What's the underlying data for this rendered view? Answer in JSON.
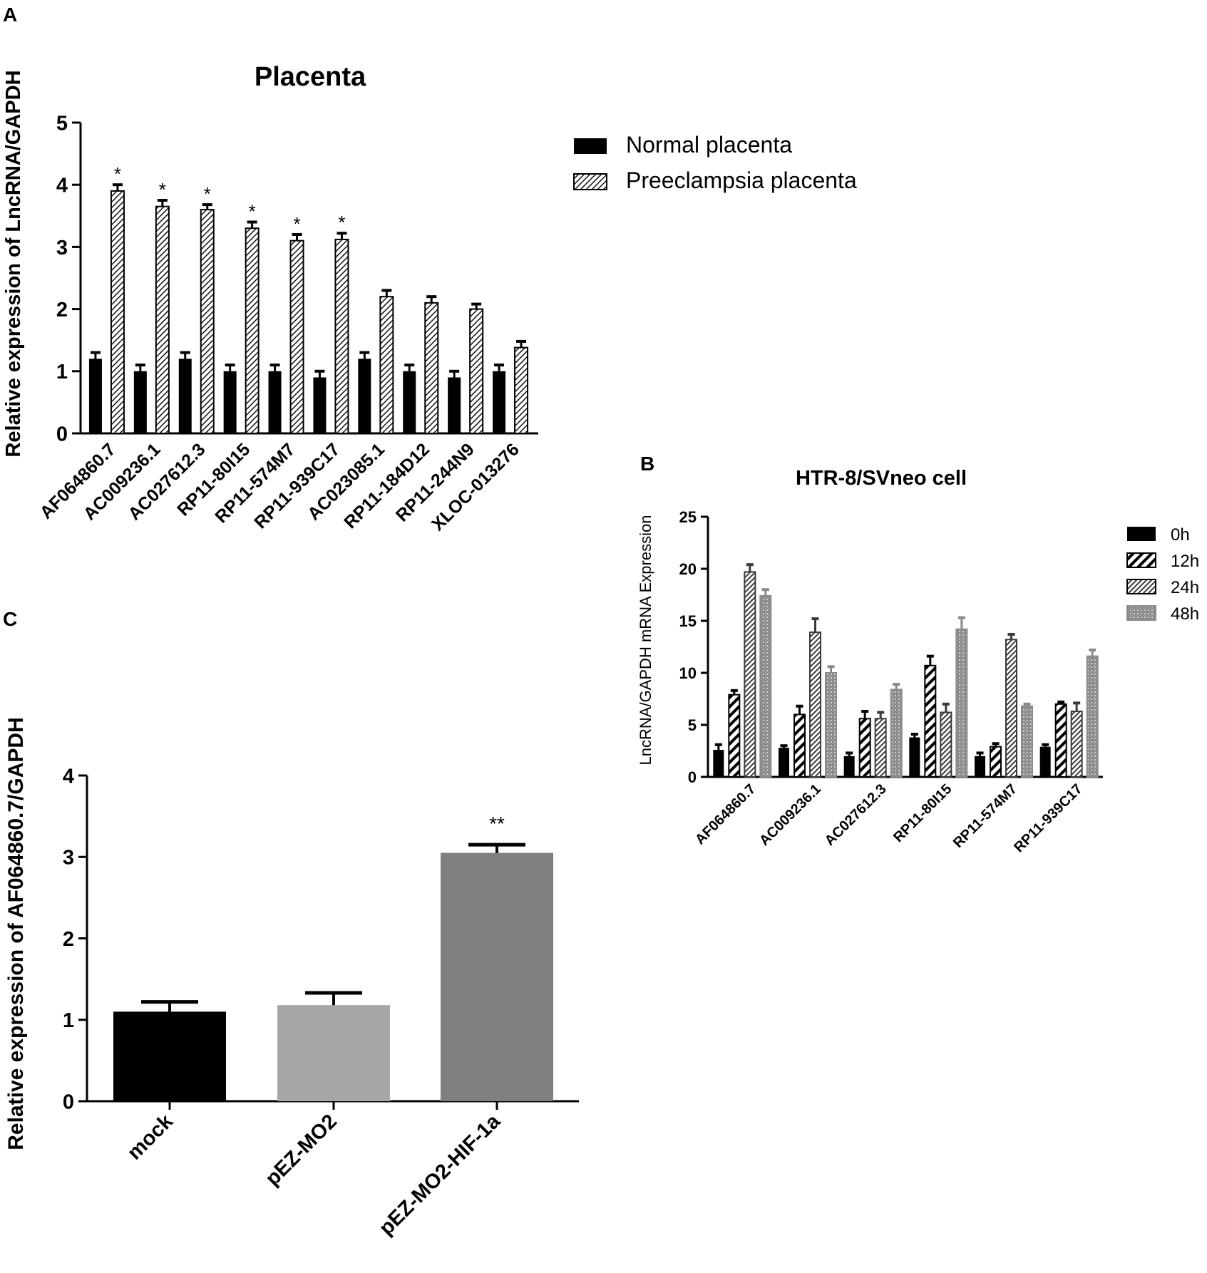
{
  "chart_data": [
    {
      "panel": "A",
      "type": "bar",
      "title": "Placenta",
      "xlabel": "",
      "ylabel": "Relative expression of LncRNA/GAPDH",
      "ylim": [
        0,
        5
      ],
      "yticks": [
        "0",
        "1",
        "2",
        "3",
        "4",
        "5"
      ],
      "legend_position": "top-right",
      "categories": [
        "AF064860.7",
        "AC009236.1",
        "AC027612.3",
        "RP11-80I15",
        "RP11-574M7",
        "RP11-939C17",
        "AC023085.1",
        "RP11-184D12",
        "RP11-244N9",
        "XLOC-013276"
      ],
      "series": [
        {
          "name": "Normal placenta",
          "values": [
            1.2,
            1.0,
            1.2,
            1.0,
            1.0,
            0.9,
            1.2,
            1.0,
            0.9,
            1.0
          ],
          "errors": [
            0.1,
            0.1,
            0.1,
            0.1,
            0.1,
            0.1,
            0.1,
            0.1,
            0.1,
            0.1
          ],
          "color": "#000000",
          "pattern": "solid"
        },
        {
          "name": "Preeclampsia placenta",
          "values": [
            3.9,
            3.65,
            3.6,
            3.3,
            3.1,
            3.12,
            2.2,
            2.1,
            2.0,
            1.38
          ],
          "errors": [
            0.1,
            0.1,
            0.08,
            0.1,
            0.1,
            0.1,
            0.1,
            0.1,
            0.08,
            0.1
          ],
          "color": "#000000",
          "pattern": "hatch"
        }
      ],
      "annotations": [
        "*",
        "*",
        "*",
        "*",
        "*",
        "*",
        "",
        "",
        "",
        ""
      ]
    },
    {
      "panel": "B",
      "type": "bar",
      "title": "HTR-8/SVneo cell",
      "xlabel": "",
      "ylabel": "LncRNA/GAPDH mRNA Expression",
      "ylim": [
        0,
        25
      ],
      "yticks": [
        "0",
        "5",
        "10",
        "15",
        "20",
        "25"
      ],
      "legend_position": "top-right",
      "categories": [
        "AF064860.7",
        "AC009236.1",
        "AC027612.3",
        "RP11-80I15",
        "RP11-574M7",
        "RP11-939C17"
      ],
      "series": [
        {
          "name": "0h",
          "values": [
            2.6,
            2.8,
            2.0,
            3.8,
            2.0,
            2.9
          ],
          "errors": [
            0.5,
            0.2,
            0.3,
            0.3,
            0.3,
            0.2
          ],
          "color": "#000000",
          "pattern": "solid"
        },
        {
          "name": "12h",
          "values": [
            7.9,
            6.0,
            5.6,
            10.7,
            2.9,
            7.0
          ],
          "errors": [
            0.4,
            0.8,
            0.7,
            0.9,
            0.3,
            0.2
          ],
          "color": "#000000",
          "pattern": "bold-hatch"
        },
        {
          "name": "24h",
          "values": [
            19.7,
            13.9,
            5.6,
            6.2,
            13.2,
            6.3
          ],
          "errors": [
            0.7,
            1.3,
            0.6,
            0.8,
            0.5,
            0.8
          ],
          "color": "#3a3a3a",
          "pattern": "hatch"
        },
        {
          "name": "48h",
          "values": [
            17.4,
            10.0,
            8.4,
            14.2,
            6.8,
            11.6
          ],
          "errors": [
            0.6,
            0.6,
            0.5,
            1.1,
            0.2,
            0.6
          ],
          "color": "#8a8a8a",
          "pattern": "dots"
        }
      ]
    },
    {
      "panel": "C",
      "type": "bar",
      "title": "",
      "xlabel": "",
      "ylabel": "Relative expression of AF064860.7/GAPDH",
      "ylim": [
        0,
        4
      ],
      "yticks": [
        "0",
        "1",
        "2",
        "3",
        "4"
      ],
      "categories": [
        "mock",
        "pEZ-MO2",
        "pEZ-MO2-HIF-1a"
      ],
      "values": [
        1.1,
        1.18,
        3.05
      ],
      "errors": [
        0.12,
        0.15,
        0.1
      ],
      "colors": [
        "#000000",
        "#a6a6a6",
        "#7f7f7f"
      ],
      "annotations": [
        "",
        "",
        "**"
      ]
    }
  ]
}
